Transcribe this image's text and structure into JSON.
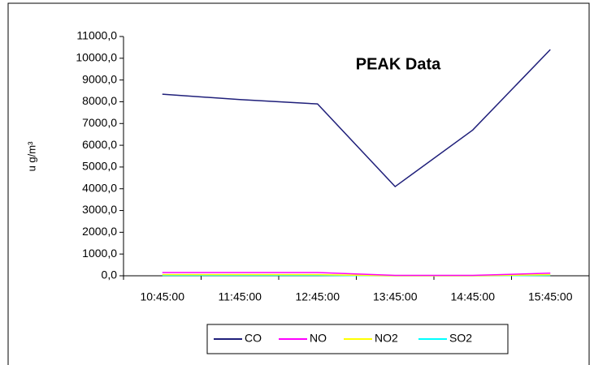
{
  "chart_data": {
    "type": "line",
    "title": "PEAK Data",
    "y_label": "u g/m³",
    "categories": [
      "10:45:00",
      "11:45:00",
      "12:45:00",
      "13:45:00",
      "14:45:00",
      "15:45:00"
    ],
    "series": [
      {
        "name": "CO",
        "color": "#1f1f7a",
        "values": [
          8350,
          8100,
          7900,
          4100,
          6700,
          10400
        ]
      },
      {
        "name": "NO",
        "color": "#ff00ff",
        "values": [
          150,
          150,
          150,
          20,
          20,
          120
        ]
      },
      {
        "name": "NO2",
        "color": "#ffff00",
        "values": [
          50,
          50,
          50,
          0,
          0,
          50
        ]
      },
      {
        "name": "SO2",
        "color": "#00ffff",
        "values": [
          20,
          20,
          20,
          0,
          0,
          20
        ]
      }
    ],
    "ylim": [
      0,
      11000
    ],
    "yticks": [
      {
        "value": 0,
        "label": "0,0"
      },
      {
        "value": 1000,
        "label": "1000,0"
      },
      {
        "value": 2000,
        "label": "2000,0"
      },
      {
        "value": 3000,
        "label": "3000,0"
      },
      {
        "value": 4000,
        "label": "4000,0"
      },
      {
        "value": 5000,
        "label": "5000,0"
      },
      {
        "value": 6000,
        "label": "6000,0"
      },
      {
        "value": 7000,
        "label": "7000,0"
      },
      {
        "value": 8000,
        "label": "8000,0"
      },
      {
        "value": 9000,
        "label": "9000,0"
      },
      {
        "value": 10000,
        "label": "10000,0"
      },
      {
        "value": 11000,
        "label": "11000,0"
      }
    ],
    "grid": false,
    "legend": "bottom"
  }
}
